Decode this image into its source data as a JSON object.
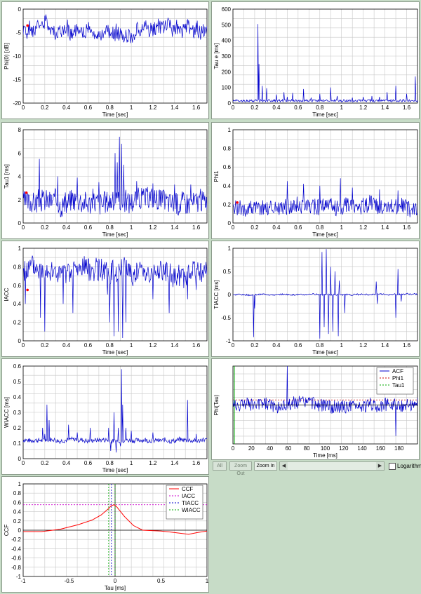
{
  "charts": [
    {
      "id": "phi0",
      "type": "line",
      "xlabel": "Time [sec]",
      "ylabel": "Phi(0) [dB]",
      "xlim": [
        0,
        1.7
      ],
      "ylim": [
        -20,
        0
      ],
      "xticks": [
        0,
        0.2,
        0.4,
        0.6,
        0.8,
        1,
        1.2,
        1.4,
        1.6
      ],
      "yticks": [
        0,
        -5,
        -10,
        -15,
        -20
      ],
      "ytick_labels": [
        "0",
        "-5",
        "-10",
        "-15",
        "-20"
      ],
      "sig": {
        "seed": 1,
        "base": -5,
        "noise": 1.6,
        "drift": 1.2,
        "spikes": []
      },
      "markers": [
        {
          "x": 0.04,
          "y": -3.5
        }
      ]
    },
    {
      "id": "taue",
      "type": "line",
      "xlabel": "Time [sec]",
      "ylabel": "Tau e [ms]",
      "xlim": [
        0,
        1.7
      ],
      "ylim": [
        0,
        600
      ],
      "xticks": [
        0,
        0.2,
        0.4,
        0.6,
        0.8,
        1,
        1.2,
        1.4,
        1.6
      ],
      "yticks": [
        0,
        100,
        200,
        300,
        400,
        500,
        600
      ],
      "ytick_labels": [
        "0",
        "100",
        "200",
        "300",
        "400",
        "500",
        "600"
      ],
      "sig": {
        "seed": 2,
        "base": 15,
        "noise": 8,
        "drift": 0,
        "floor": 2,
        "spikes": [
          [
            0.23,
            505
          ],
          [
            0.24,
            250
          ],
          [
            0.27,
            110
          ],
          [
            0.31,
            95
          ],
          [
            0.4,
            55
          ],
          [
            0.47,
            70
          ],
          [
            0.5,
            40
          ],
          [
            0.55,
            65
          ],
          [
            0.65,
            90
          ],
          [
            0.72,
            35
          ],
          [
            0.8,
            60
          ],
          [
            0.9,
            100
          ],
          [
            0.96,
            45
          ],
          [
            1.1,
            35
          ],
          [
            1.2,
            40
          ],
          [
            1.28,
            45
          ],
          [
            1.35,
            40
          ],
          [
            1.42,
            70
          ],
          [
            1.5,
            110
          ],
          [
            1.6,
            60
          ],
          [
            1.68,
            170
          ]
        ]
      },
      "markers": []
    },
    {
      "id": "tau1",
      "type": "line",
      "xlabel": "Time [sec]",
      "ylabel": "Tau1 [ms]",
      "xlim": [
        0,
        1.7
      ],
      "ylim": [
        0,
        8
      ],
      "xticks": [
        0,
        0.2,
        0.4,
        0.6,
        0.8,
        1,
        1.2,
        1.4,
        1.6
      ],
      "yticks": [
        0,
        2,
        4,
        6,
        8
      ],
      "ytick_labels": [
        "0",
        "2",
        "4",
        "6",
        "8"
      ],
      "sig": {
        "seed": 3,
        "base": 1.9,
        "noise": 1.0,
        "drift": 0.2,
        "floor": 0.3,
        "spikes": [
          [
            0.15,
            5.5
          ],
          [
            0.32,
            4.0
          ],
          [
            0.5,
            3.9
          ],
          [
            0.7,
            3.5
          ],
          [
            0.85,
            6.0
          ],
          [
            0.87,
            5.2
          ],
          [
            0.89,
            7.4
          ],
          [
            0.91,
            6.8
          ],
          [
            0.93,
            5.0
          ],
          [
            1.05,
            3.6
          ],
          [
            1.2,
            3.4
          ],
          [
            1.4,
            3.3
          ],
          [
            1.55,
            3.3
          ]
        ]
      },
      "markers": [
        {
          "x": 0.03,
          "y": 2.6
        }
      ]
    },
    {
      "id": "phi1",
      "type": "line",
      "xlabel": "Time [sec]",
      "ylabel": "Phi1",
      "xlim": [
        0,
        1.7
      ],
      "ylim": [
        0,
        1
      ],
      "xticks": [
        0,
        0.2,
        0.4,
        0.6,
        0.8,
        1,
        1.2,
        1.4,
        1.6
      ],
      "yticks": [
        0,
        0.2,
        0.4,
        0.6,
        0.8,
        1
      ],
      "ytick_labels": [
        "0",
        "0.2",
        "0.4",
        "0.6",
        "0.8",
        "1"
      ],
      "sig": {
        "seed": 4,
        "base": 0.17,
        "noise": 0.09,
        "drift": 0.02,
        "floor": 0.01,
        "spikes": [
          [
            0.5,
            0.45
          ],
          [
            0.65,
            0.42
          ],
          [
            0.8,
            0.4
          ],
          [
            0.99,
            0.48
          ],
          [
            1.1,
            0.38
          ],
          [
            1.35,
            0.36
          ],
          [
            1.52,
            0.35
          ]
        ]
      },
      "markers": [
        {
          "x": 0.04,
          "y": 0.22
        }
      ]
    },
    {
      "id": "iacc",
      "type": "line",
      "xlabel": "Time [sec]",
      "ylabel": "IACC",
      "xlim": [
        0,
        1.7
      ],
      "ylim": [
        0,
        1
      ],
      "xticks": [
        0,
        0.2,
        0.4,
        0.6,
        0.8,
        1,
        1.2,
        1.4,
        1.6
      ],
      "yticks": [
        0,
        0.2,
        0.4,
        0.6,
        0.8,
        1
      ],
      "ytick_labels": [
        "0",
        "0.2",
        "0.4",
        "0.6",
        "0.8",
        "1"
      ],
      "sig": {
        "seed": 5,
        "base": 0.74,
        "noise": 0.12,
        "drift": 0.05,
        "floor": 0.0,
        "ceil": 0.92,
        "spikes": [
          [
            0.02,
            0.4
          ],
          [
            0.16,
            0.25
          ],
          [
            0.2,
            0.1
          ],
          [
            0.37,
            0.4
          ],
          [
            0.46,
            0.3
          ],
          [
            0.78,
            0.5
          ],
          [
            0.8,
            0.2
          ],
          [
            0.84,
            0.05
          ],
          [
            0.88,
            0.1
          ],
          [
            0.92,
            0.03
          ],
          [
            0.95,
            0.2
          ],
          [
            1.2,
            0.45
          ],
          [
            1.35,
            0.3
          ],
          [
            1.52,
            0.45
          ],
          [
            1.6,
            0.55
          ]
        ]
      },
      "markers": [
        {
          "x": 0.04,
          "y": 0.55
        }
      ]
    },
    {
      "id": "tiacc",
      "type": "line",
      "xlabel": "Time [sec]",
      "ylabel": "TIACC [ms]",
      "xlim": [
        0,
        1.7
      ],
      "ylim": [
        -1,
        1
      ],
      "xticks": [
        0,
        0.2,
        0.4,
        0.6,
        0.8,
        1,
        1.2,
        1.4,
        1.6
      ],
      "yticks": [
        1,
        0.5,
        0,
        -0.5,
        -1
      ],
      "ytick_labels": [
        "1",
        "0.5",
        "0",
        "-0.5",
        "-1"
      ],
      "sig": {
        "seed": 6,
        "base": 0.0,
        "noise": 0.015,
        "drift": 0.01,
        "spikes": [
          [
            0.19,
            -0.92
          ],
          [
            0.2,
            -0.3
          ],
          [
            0.8,
            -0.95
          ],
          [
            0.82,
            0.92
          ],
          [
            0.84,
            -0.7
          ],
          [
            0.86,
            0.98
          ],
          [
            0.88,
            -0.85
          ],
          [
            0.9,
            0.6
          ],
          [
            0.92,
            -0.8
          ],
          [
            0.94,
            0.5
          ],
          [
            0.97,
            -0.9
          ],
          [
            0.98,
            0.3
          ],
          [
            1.03,
            -0.4
          ],
          [
            1.32,
            0.28
          ],
          [
            1.33,
            -0.2
          ],
          [
            1.5,
            -0.5
          ],
          [
            1.52,
            0.55
          ],
          [
            1.55,
            -0.15
          ]
        ]
      },
      "markers": []
    },
    {
      "id": "wiacc",
      "type": "line",
      "xlabel": "Time [sec]",
      "ylabel": "WIACC [ms]",
      "xlim": [
        0,
        1.7
      ],
      "ylim": [
        0,
        0.6
      ],
      "xticks": [
        0,
        0.2,
        0.4,
        0.6,
        0.8,
        1,
        1.2,
        1.4,
        1.6
      ],
      "yticks": [
        0,
        0.1,
        0.2,
        0.3,
        0.4,
        0.5,
        0.6
      ],
      "ytick_labels": [
        "0",
        "0.1",
        "0.2",
        "0.3",
        "0.4",
        "0.5",
        "0.6"
      ],
      "sig": {
        "seed": 7,
        "base": 0.12,
        "noise": 0.015,
        "drift": 0.005,
        "floor": 0.03,
        "spikes": [
          [
            0.18,
            0.2
          ],
          [
            0.2,
            0.16
          ],
          [
            0.22,
            0.35
          ],
          [
            0.24,
            0.25
          ],
          [
            0.42,
            0.22
          ],
          [
            0.5,
            0.17
          ],
          [
            0.62,
            0.2
          ],
          [
            0.79,
            0.2
          ],
          [
            0.81,
            0.05
          ],
          [
            0.84,
            0.3
          ],
          [
            0.86,
            0.04
          ],
          [
            0.88,
            0.2
          ],
          [
            0.9,
            0.08
          ],
          [
            0.91,
            0.58
          ],
          [
            0.92,
            0.35
          ],
          [
            0.95,
            0.2
          ],
          [
            1.0,
            0.18
          ],
          [
            1.2,
            0.17
          ],
          [
            1.52,
            0.38
          ],
          [
            1.6,
            0.16
          ]
        ]
      },
      "markers": []
    },
    {
      "id": "acf",
      "type": "line",
      "xlabel": "Time [ms]",
      "ylabel": "Phi(Tau)",
      "xlim": [
        0,
        200
      ],
      "ylim": [
        -1,
        1
      ],
      "xticks": [
        0,
        20,
        40,
        60,
        80,
        100,
        120,
        140,
        160,
        180
      ],
      "yticks": [],
      "ytick_labels": [],
      "legend": [
        "ACF",
        "Phi1",
        "Tau1"
      ],
      "legend_colors": [
        "#0000cc",
        "#cc0000",
        "#00aa00"
      ],
      "sig": {
        "seed": 8,
        "base": 0.0,
        "noise": 0.17,
        "drift": 0.05,
        "spikes": [
          [
            0.5,
            1.0
          ],
          [
            1.5,
            -0.8
          ]
        ]
      },
      "hline": 0.13,
      "vline": 1.5,
      "markers": []
    },
    {
      "id": "ccf",
      "type": "line",
      "xlabel": "Tau [ms]",
      "ylabel": "CCF",
      "xlim": [
        -1,
        1
      ],
      "ylim": [
        -1,
        1
      ],
      "xticks": [
        -1,
        -0.5,
        0,
        0.5,
        1
      ],
      "yticks": [
        1,
        0.8,
        0.6,
        0.4,
        0.2,
        0,
        -0.2,
        -0.4,
        -0.6,
        -0.8,
        -1
      ],
      "ytick_labels": [
        "1",
        "0.8",
        "0.6",
        "0.4",
        "0.2",
        "0",
        "-0.2",
        "-0.4",
        "-0.6",
        "-0.8",
        "-1"
      ],
      "legend": [
        "CCF",
        "IACC",
        "TIACC",
        "WIACC"
      ],
      "legend_colors": [
        "#ff0000",
        "#cc00cc",
        "#0000cc",
        "#00aa00"
      ],
      "curve": [
        [
          -1,
          -0.03
        ],
        [
          -0.8,
          -0.03
        ],
        [
          -0.6,
          0.02
        ],
        [
          -0.4,
          0.12
        ],
        [
          -0.25,
          0.22
        ],
        [
          -0.15,
          0.33
        ],
        [
          -0.08,
          0.45
        ],
        [
          -0.04,
          0.53
        ],
        [
          -0.01,
          0.55
        ],
        [
          0.02,
          0.5
        ],
        [
          0.1,
          0.3
        ],
        [
          0.2,
          0.1
        ],
        [
          0.3,
          0.0
        ],
        [
          0.5,
          -0.02
        ],
        [
          0.6,
          -0.04
        ],
        [
          0.8,
          -0.09
        ],
        [
          0.9,
          -0.05
        ],
        [
          1,
          -0.02
        ]
      ],
      "iacc": 0.55,
      "tiacc": -0.04,
      "wiacc": [
        -0.07,
        0.0
      ],
      "markers": []
    }
  ],
  "toolbar": {
    "all": "All",
    "zoom_out": "Zoom Out",
    "zoom_in": "Zoom In",
    "left_arrow": "◀",
    "right_arrow": "▶",
    "log_label": "Logarithm"
  }
}
